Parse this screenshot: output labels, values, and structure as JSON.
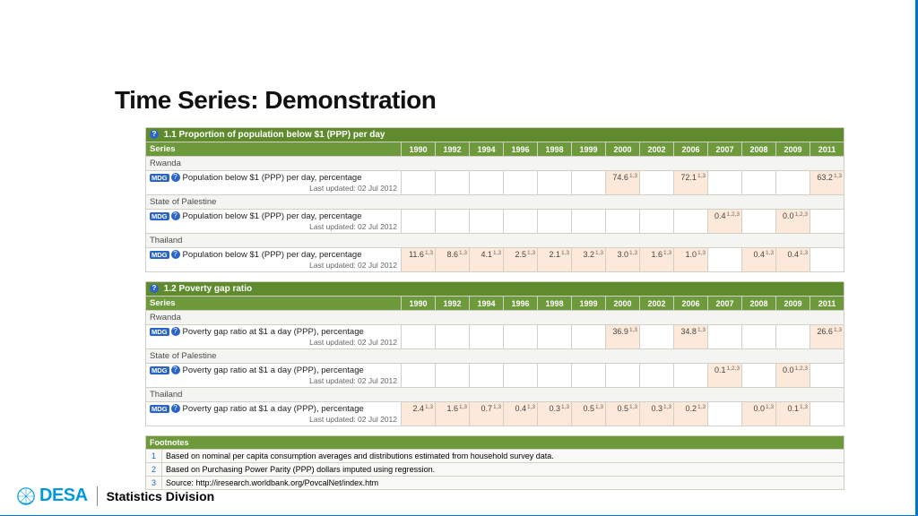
{
  "title": "Time Series: Demonstration",
  "years": [
    "1990",
    "1992",
    "1994",
    "1996",
    "1998",
    "1999",
    "2000",
    "2002",
    "2006",
    "2007",
    "2008",
    "2009",
    "2011"
  ],
  "series_label": "Series",
  "mdg_label": "MDG",
  "last_updated_label": "Last updated: 02 Jul 2012",
  "indicators": [
    {
      "title": "1.1 Proportion of population below $1 (PPP) per day",
      "countries": [
        {
          "name": "Rwanda",
          "series": "Population below $1 (PPP) per day, percentage",
          "values": {
            "2000": "74.6",
            "2006": "72.1",
            "2011": "63.2"
          },
          "sup": {
            "2000": "1,3",
            "2006": "1,3",
            "2011": "1,3"
          }
        },
        {
          "name": "State of Palestine",
          "series": "Population below $1 (PPP) per day, percentage",
          "values": {
            "2007": "0.4",
            "2009": "0.0"
          },
          "sup": {
            "2007": "1,2,3",
            "2009": "1,2,3"
          }
        },
        {
          "name": "Thailand",
          "series": "Population below $1 (PPP) per day, percentage",
          "values": {
            "1990": "11.6",
            "1992": "8.6",
            "1994": "4.1",
            "1996": "2.5",
            "1998": "2.1",
            "1999": "3.2",
            "2000": "3.0",
            "2002": "1.6",
            "2006": "1.0",
            "2008": "0.4",
            "2009": "0.4"
          },
          "sup": {
            "1990": "1,3",
            "1992": "1,3",
            "1994": "1,3",
            "1996": "1,3",
            "1998": "1,3",
            "1999": "1,3",
            "2000": "1,3",
            "2002": "1,3",
            "2006": "1,3",
            "2008": "1,3",
            "2009": "1,3"
          }
        }
      ]
    },
    {
      "title": "1.2 Poverty gap ratio",
      "countries": [
        {
          "name": "Rwanda",
          "series": "Poverty gap ratio at $1 a day (PPP), percentage",
          "values": {
            "2000": "36.9",
            "2006": "34.8",
            "2011": "26.6"
          },
          "sup": {
            "2000": "1,3",
            "2006": "1,3",
            "2011": "1,3"
          }
        },
        {
          "name": "State of Palestine",
          "series": "Poverty gap ratio at $1 a day (PPP), percentage",
          "values": {
            "2007": "0.1",
            "2009": "0.0"
          },
          "sup": {
            "2007": "1,2,3",
            "2009": "1,2,3"
          }
        },
        {
          "name": "Thailand",
          "series": "Poverty gap ratio at $1 a day (PPP), percentage",
          "values": {
            "1990": "2.4",
            "1992": "1.6",
            "1994": "0.7",
            "1996": "0.4",
            "1998": "0.3",
            "1999": "0.5",
            "2000": "0.5",
            "2002": "0.3",
            "2006": "0.2",
            "2008": "0.0",
            "2009": "0.1"
          },
          "sup": {
            "1990": "1,3",
            "1992": "1,3",
            "1994": "1,3",
            "1996": "1,3",
            "1998": "1,3",
            "1999": "1,3",
            "2000": "1,3",
            "2002": "1,3",
            "2006": "1,3",
            "2008": "1,3",
            "2009": "1,3"
          }
        }
      ]
    }
  ],
  "footnotes_label": "Footnotes",
  "footnotes": [
    {
      "n": "1",
      "text": "Based on nominal per capita consumption averages and distributions estimated from household survey data."
    },
    {
      "n": "2",
      "text": "Based on Purchasing Power Parity (PPP) dollars imputed using regression."
    },
    {
      "n": "3",
      "text": "Source: http://iresearch.worldbank.org/PovcalNet/index.htm"
    }
  ],
  "footer": {
    "desa": "DESA",
    "division": "Statistics Division"
  },
  "colors": {
    "header_green": "#5f8b2e",
    "subheader_green": "#6e9a3c",
    "value_bg": "#fde9d9",
    "badge_blue": "#2a64c9",
    "accent_blue": "#0077c8",
    "desa_blue": "#0099dd"
  }
}
